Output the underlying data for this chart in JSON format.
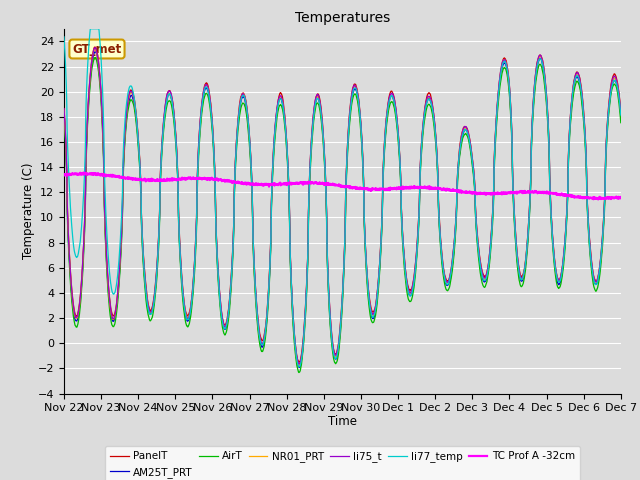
{
  "title": "Temperatures",
  "xlabel": "Time",
  "ylabel": "Temperature (C)",
  "ylim": [
    -4,
    25
  ],
  "background_color": "#dcdcdc",
  "plot_bg_color": "#dcdcdc",
  "grid_color": "#ffffff",
  "series": {
    "PanelT": {
      "color": "#cc0000",
      "lw": 1.0
    },
    "AM25T_PRT": {
      "color": "#0000cc",
      "lw": 1.0
    },
    "AirT": {
      "color": "#00bb00",
      "lw": 1.0
    },
    "NR01_PRT": {
      "color": "#ffaa00",
      "lw": 1.0
    },
    "li75_t": {
      "color": "#9900cc",
      "lw": 1.0
    },
    "li77_temp": {
      "color": "#00cccc",
      "lw": 1.0
    },
    "TC Prof A -32cm": {
      "color": "#ff00ff",
      "lw": 1.6
    }
  },
  "annotation_text": "GT_met",
  "annotation_bg": "#ffffcc",
  "annotation_border": "#cc9900",
  "tick_labels": [
    "Nov 22",
    "Nov 23",
    "Nov 24",
    "Nov 25",
    "Nov 26",
    "Nov 27",
    "Nov 28",
    "Nov 29",
    "Nov 30",
    "Dec 1",
    "Dec 2",
    "Dec 3",
    "Dec 4",
    "Dec 5",
    "Dec 6",
    "Dec 7"
  ],
  "tick_positions": [
    0,
    1,
    2,
    3,
    4,
    5,
    6,
    7,
    8,
    9,
    10,
    11,
    12,
    13,
    14,
    15
  ]
}
